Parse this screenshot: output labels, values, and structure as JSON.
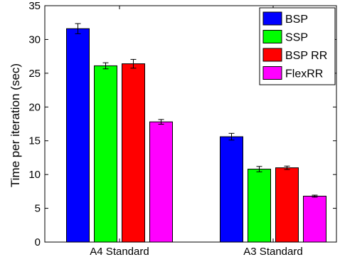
{
  "chart_data": {
    "type": "bar",
    "title": "",
    "xlabel": "",
    "ylabel": "Time per iteration (sec)",
    "categories": [
      "A4 Standard",
      "A3 Standard"
    ],
    "series": [
      {
        "name": "BSP",
        "values": [
          31.6,
          15.6
        ],
        "errors": [
          0.75,
          0.5
        ],
        "color": "#0000ff"
      },
      {
        "name": "SSP",
        "values": [
          26.1,
          10.8
        ],
        "errors": [
          0.45,
          0.4
        ],
        "color": "#00ff00"
      },
      {
        "name": "BSP RR",
        "values": [
          26.4,
          11.0
        ],
        "errors": [
          0.65,
          0.25
        ],
        "color": "#ff0000"
      },
      {
        "name": "FlexRR",
        "values": [
          17.8,
          6.8
        ],
        "errors": [
          0.35,
          0.15
        ],
        "color": "#ff00ff"
      }
    ],
    "ylim": [
      0,
      35
    ],
    "yticks": [
      0,
      5,
      10,
      15,
      20,
      25,
      30,
      35
    ],
    "grid": false,
    "legend": "top-right",
    "error_bars": true
  }
}
